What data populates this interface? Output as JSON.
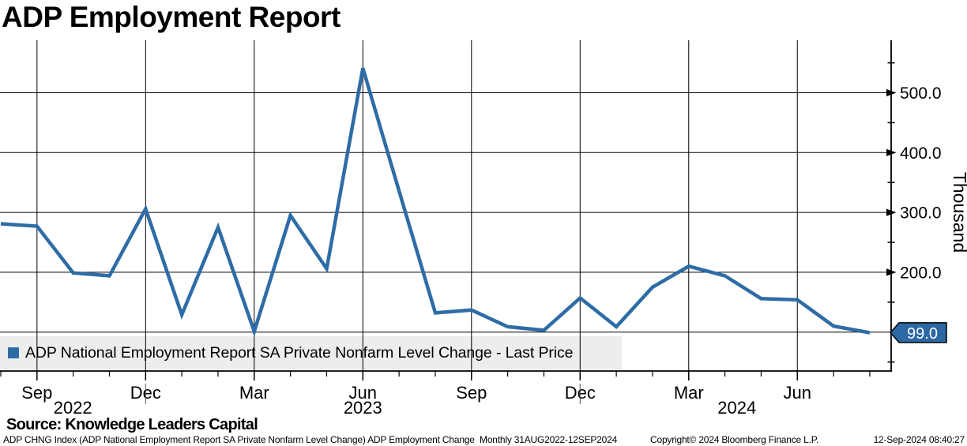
{
  "title": "ADP Employment Report",
  "legend": {
    "label": "ADP National Employment Report SA Private Nonfarm Level Change - Last Price"
  },
  "source_line": "Source: Knowledge Leaders Capital",
  "footer": {
    "description": "ADP CHNG Index (ADP National Employment Report SA Private Nonfarm Level Change) ADP Employment Change  Monthly 31AUG2022-12SEP2024",
    "copyright": "Copyright© 2024 Bloomberg Finance L.P.",
    "timestamp": "12-Sep-2024 08:40:27"
  },
  "colors": {
    "accent": "#2e6ca6",
    "tag_fill": "#2c68a4",
    "legend_bg": "#ededed",
    "grid": "#000000"
  },
  "chart_data": {
    "type": "line",
    "title": "ADP Employment Report",
    "series_name": "ADP National Employment Report SA Private Nonfarm Level Change - Last Price",
    "unit_label": "Thousand",
    "categories": [
      "Aug 2022",
      "Sep 2022",
      "Oct 2022",
      "Nov 2022",
      "Dec 2022",
      "Jan 2023",
      "Feb 2023",
      "Mar 2023",
      "Apr 2023",
      "May 2023",
      "Jun 2023",
      "Jul 2023",
      "Aug 2023",
      "Sep 2023",
      "Oct 2023",
      "Nov 2023",
      "Dec 2023",
      "Jan 2024",
      "Feb 2024",
      "Mar 2024",
      "Apr 2024",
      "May 2024",
      "Jun 2024",
      "Jul 2024",
      "Aug 2024"
    ],
    "values": [
      281,
      277,
      199,
      194,
      306,
      129,
      275,
      101,
      295,
      206,
      541,
      336,
      132,
      137,
      109,
      103,
      157,
      109,
      175,
      210,
      194,
      156,
      154,
      110,
      99
    ],
    "last_price": 99.0,
    "last_price_label": "99.0",
    "ylim": [
      35,
      586
    ],
    "grid": true,
    "legend_position": "bottom-left-inside",
    "ygrid_values": [
      100,
      200,
      300,
      400,
      500
    ],
    "yticks_labeled": [
      {
        "value": 200,
        "label": "200.0"
      },
      {
        "value": 300,
        "label": "300.0"
      },
      {
        "value": 400,
        "label": "400.0"
      },
      {
        "value": 500,
        "label": "500.0"
      }
    ],
    "yticks_minor": [
      50,
      150,
      250,
      350,
      450,
      550
    ],
    "xticks_major": [
      {
        "index": 1,
        "label": "Sep"
      },
      {
        "index": 4,
        "label": "Dec"
      },
      {
        "index": 7,
        "label": "Mar"
      },
      {
        "index": 10,
        "label": "Jun"
      },
      {
        "index": 13,
        "label": "Sep"
      },
      {
        "index": 16,
        "label": "Dec"
      },
      {
        "index": 19,
        "label": "Mar"
      },
      {
        "index": 22,
        "label": "Jun"
      }
    ],
    "year_divider_indices": [
      4,
      16
    ],
    "year_labels": [
      {
        "label": "2022",
        "from": -0.02,
        "to": 4
      },
      {
        "label": "2023",
        "from": 4,
        "to": 16
      },
      {
        "label": "2024",
        "from": 16,
        "to": 24.66
      }
    ]
  }
}
